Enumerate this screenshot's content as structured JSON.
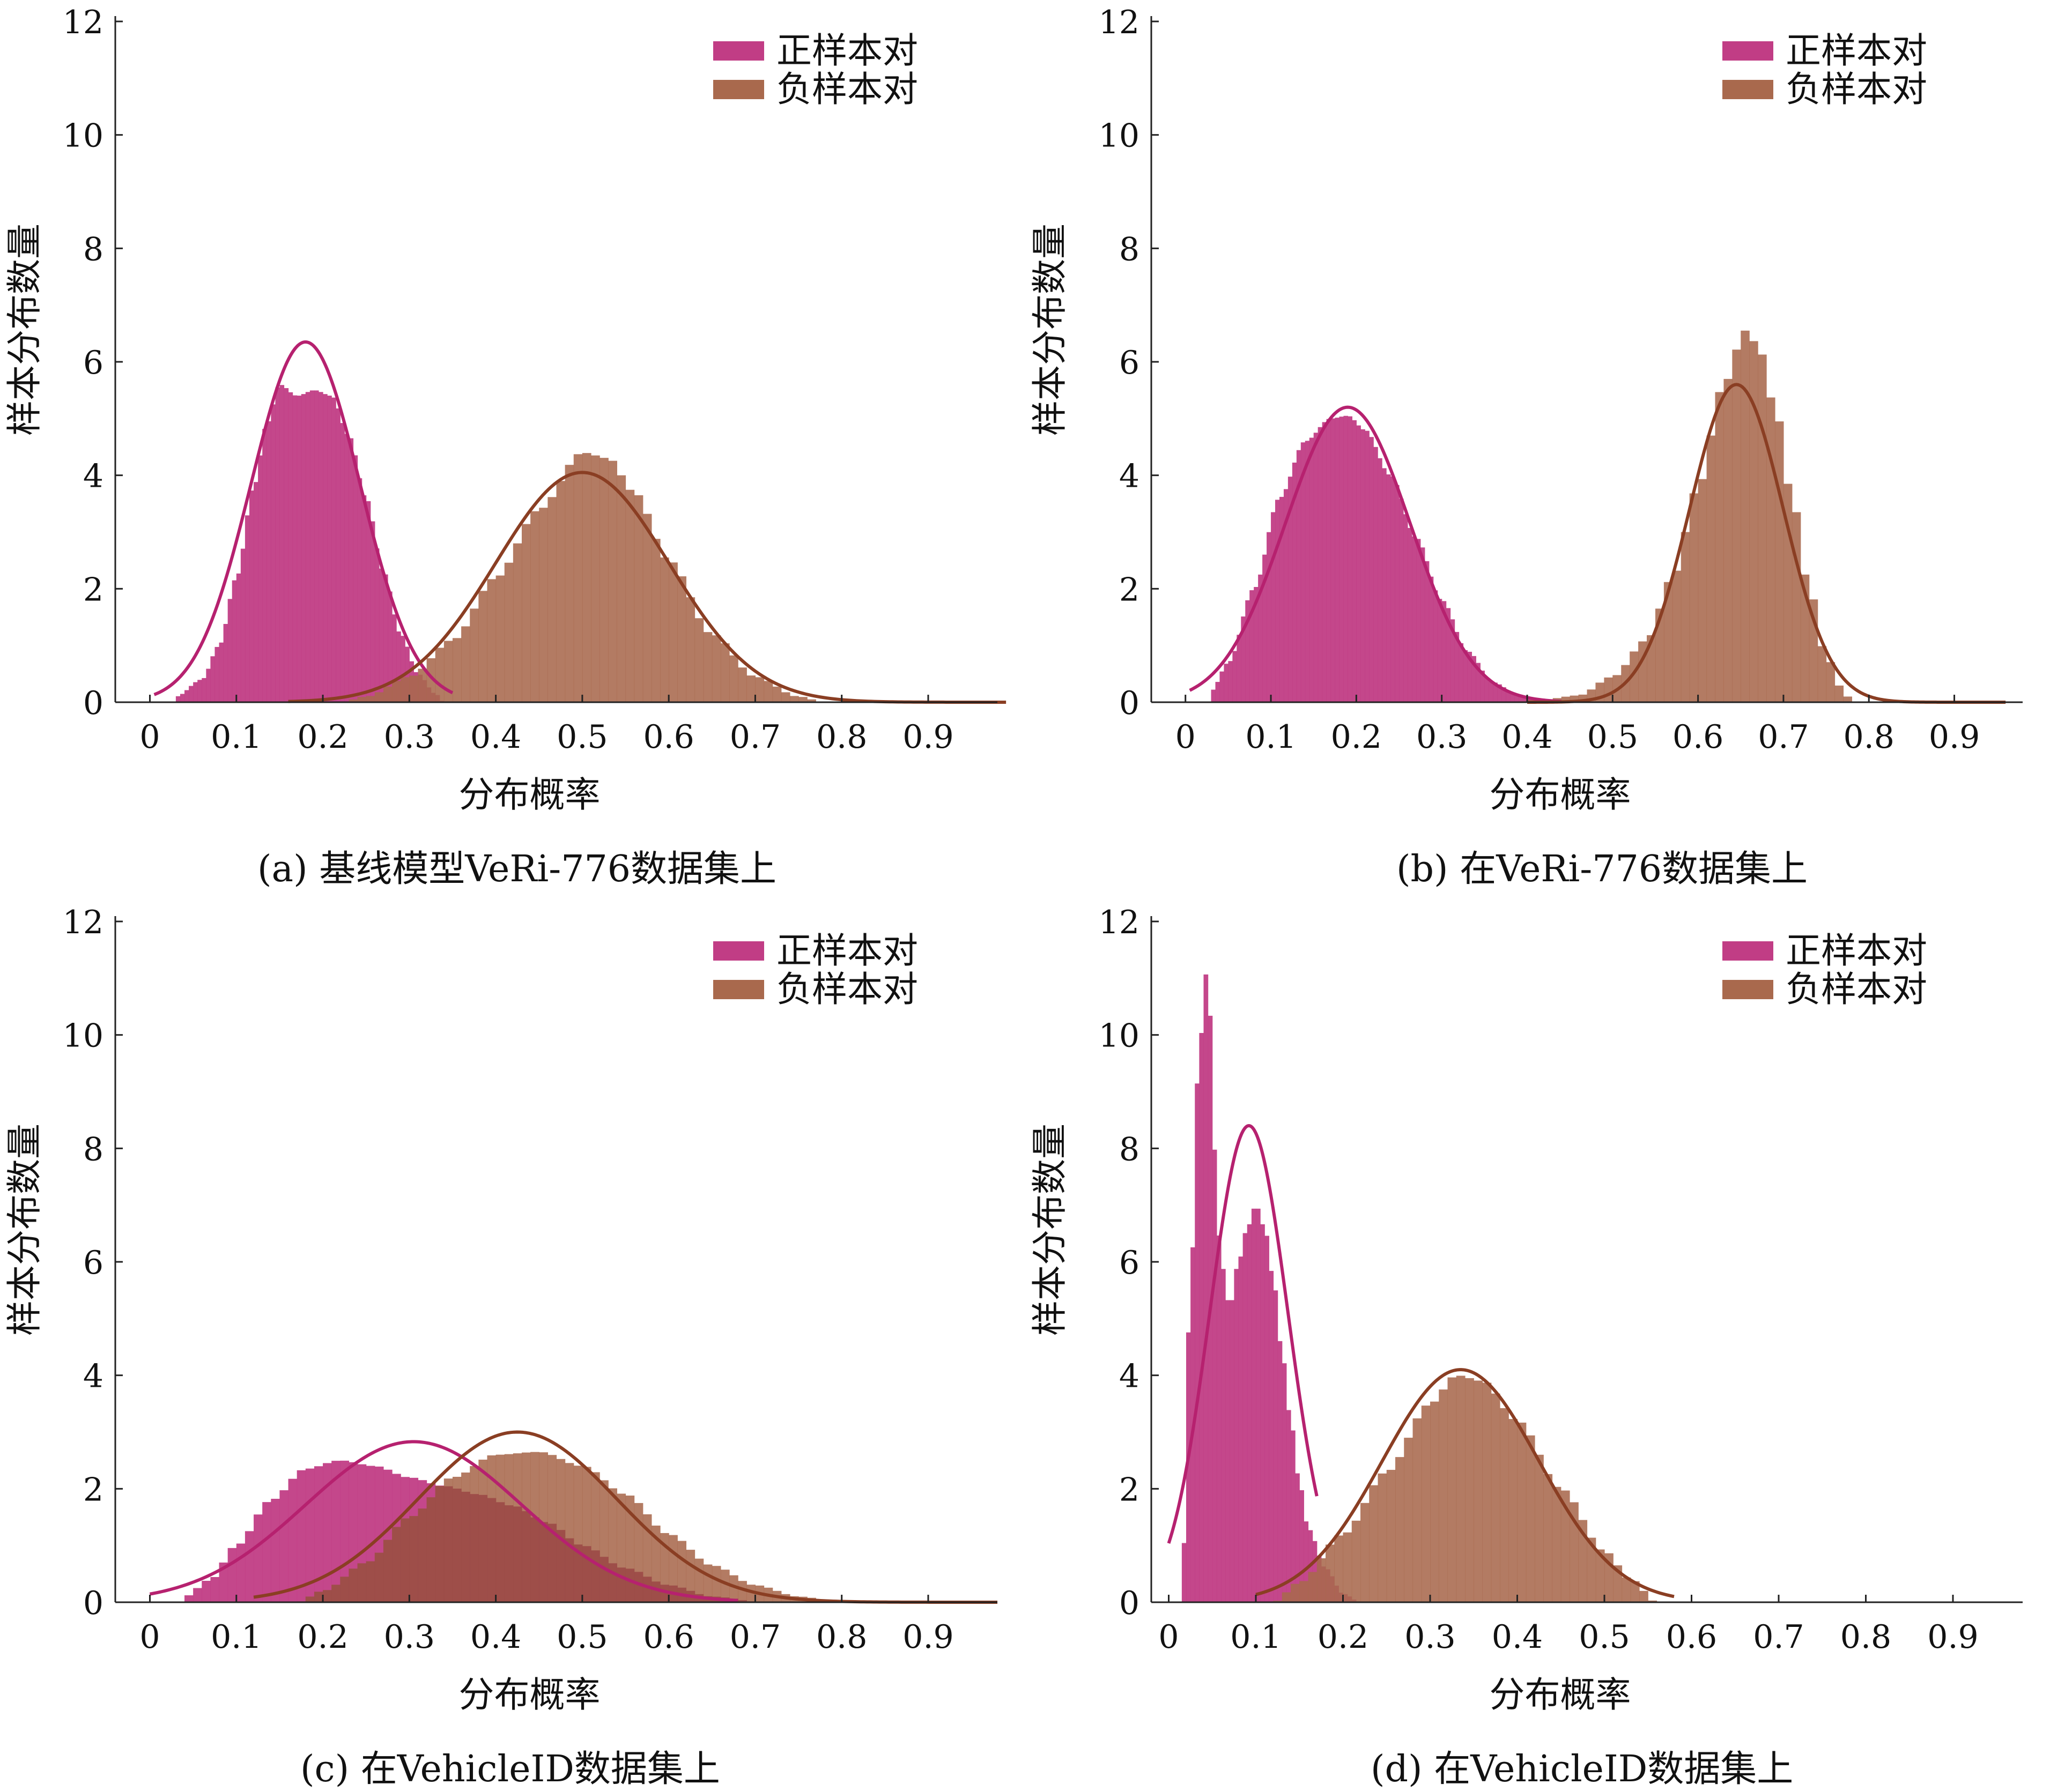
{
  "colors": {
    "positive": "#c13d85",
    "negative": "#a9694d",
    "positive_curve": "#b6216f",
    "negative_curve": "#8a3e23",
    "overlap": "#9b4a48"
  },
  "axis_text": {
    "ylabel": "样本分布数量",
    "xlabel": "分布概率"
  },
  "legend": {
    "positive": "正样本对",
    "negative": "负样本对"
  },
  "chart_data": [
    {
      "id": "a",
      "type": "histogram",
      "caption": "(a) 基线模型VeRi-776数据集上",
      "xlabel": "分布概率",
      "ylabel": "样本分布数量",
      "ylim": [
        0,
        12
      ],
      "yticks": [
        0,
        2,
        4,
        6,
        8,
        10,
        12
      ],
      "xticks": [
        "0",
        "0.1",
        "0.2",
        "0.3",
        "0.4",
        "0.5",
        "0.6",
        "0.7",
        "0.8",
        "0.9"
      ],
      "xlim": [
        -0.04,
        0.98
      ],
      "legend_position": "top-right",
      "series": [
        {
          "name": "正样本对",
          "role": "positive",
          "histogram": {
            "x_start": 0.03,
            "x_end": 0.34,
            "bin_width": 0.005,
            "anchors": [
              [
                0.03,
                0.1
              ],
              [
                0.06,
                0.4
              ],
              [
                0.08,
                1.0
              ],
              [
                0.1,
                2.2
              ],
              [
                0.12,
                3.8
              ],
              [
                0.135,
                4.9
              ],
              [
                0.15,
                5.6
              ],
              [
                0.17,
                5.4
              ],
              [
                0.19,
                5.5
              ],
              [
                0.21,
                5.4
              ],
              [
                0.23,
                4.7
              ],
              [
                0.25,
                3.6
              ],
              [
                0.27,
                2.3
              ],
              [
                0.29,
                1.2
              ],
              [
                0.31,
                0.5
              ],
              [
                0.33,
                0.15
              ],
              [
                0.34,
                0.0
              ]
            ]
          },
          "fit": {
            "mean": 0.18,
            "std": 0.063,
            "peak": 6.35,
            "x_range": [
              0.005,
              0.35
            ]
          }
        },
        {
          "name": "负样本对",
          "role": "negative",
          "histogram": {
            "x_start": 0.22,
            "x_end": 0.78,
            "bin_width": 0.01,
            "anchors": [
              [
                0.22,
                0.0
              ],
              [
                0.25,
                0.1
              ],
              [
                0.3,
                0.45
              ],
              [
                0.35,
                1.1
              ],
              [
                0.4,
                2.2
              ],
              [
                0.45,
                3.4
              ],
              [
                0.5,
                4.4
              ],
              [
                0.53,
                4.3
              ],
              [
                0.56,
                3.7
              ],
              [
                0.6,
                2.5
              ],
              [
                0.65,
                1.2
              ],
              [
                0.7,
                0.45
              ],
              [
                0.75,
                0.1
              ],
              [
                0.78,
                0.0
              ]
            ]
          },
          "fit": {
            "mean": 0.5,
            "std": 0.1,
            "peak": 4.05,
            "x_range": [
              0.16,
              0.99
            ]
          }
        }
      ]
    },
    {
      "id": "b",
      "type": "histogram",
      "caption": "(b) 在VeRi-776数据集上",
      "xlabel": "分布概率",
      "ylabel": "样本分布数量",
      "ylim": [
        0,
        12
      ],
      "yticks": [
        0,
        2,
        4,
        6,
        8,
        10,
        12
      ],
      "xticks": [
        "0",
        "0.1",
        "0.2",
        "0.3",
        "0.4",
        "0.5",
        "0.6",
        "0.7",
        "0.8",
        "0.9"
      ],
      "xlim": [
        -0.04,
        0.98
      ],
      "legend_position": "top-right",
      "series": [
        {
          "name": "正样本对",
          "role": "positive",
          "histogram": {
            "x_start": 0.03,
            "x_end": 0.43,
            "bin_width": 0.005,
            "anchors": [
              [
                0.03,
                0.2
              ],
              [
                0.05,
                0.7
              ],
              [
                0.08,
                2.0
              ],
              [
                0.11,
                3.6
              ],
              [
                0.14,
                4.6
              ],
              [
                0.17,
                5.0
              ],
              [
                0.19,
                5.05
              ],
              [
                0.21,
                4.8
              ],
              [
                0.24,
                4.0
              ],
              [
                0.27,
                2.9
              ],
              [
                0.3,
                1.8
              ],
              [
                0.33,
                0.9
              ],
              [
                0.36,
                0.35
              ],
              [
                0.39,
                0.12
              ],
              [
                0.42,
                0.05
              ],
              [
                0.43,
                0.0
              ]
            ]
          },
          "fit": {
            "mean": 0.19,
            "std": 0.073,
            "peak": 5.2,
            "x_range": [
              0.005,
              0.44
            ]
          }
        },
        {
          "name": "负样本对",
          "role": "negative",
          "histogram": {
            "x_start": 0.38,
            "x_end": 0.78,
            "bin_width": 0.01,
            "anchors": [
              [
                0.38,
                0.0
              ],
              [
                0.42,
                0.05
              ],
              [
                0.46,
                0.12
              ],
              [
                0.5,
                0.45
              ],
              [
                0.54,
                1.1
              ],
              [
                0.57,
                2.2
              ],
              [
                0.6,
                3.8
              ],
              [
                0.63,
                5.6
              ],
              [
                0.655,
                6.55
              ],
              [
                0.67,
                6.3
              ],
              [
                0.69,
                5.2
              ],
              [
                0.71,
                3.6
              ],
              [
                0.73,
                2.0
              ],
              [
                0.75,
                0.8
              ],
              [
                0.77,
                0.2
              ],
              [
                0.78,
                0.0
              ]
            ]
          },
          "fit": {
            "mean": 0.645,
            "std": 0.055,
            "peak": 5.6,
            "x_range": [
              0.4,
              0.96
            ]
          }
        }
      ]
    },
    {
      "id": "c",
      "type": "histogram",
      "caption": "(c) 在VehicleID数据集上",
      "xlabel": "分布概率",
      "ylabel": "样本分布数量",
      "ylim": [
        0,
        12
      ],
      "yticks": [
        0,
        2,
        4,
        6,
        8,
        10,
        12
      ],
      "xticks": [
        "0",
        "0.1",
        "0.2",
        "0.3",
        "0.4",
        "0.5",
        "0.6",
        "0.7",
        "0.8",
        "0.9"
      ],
      "xlim": [
        -0.04,
        0.98
      ],
      "legend_position": "top-right",
      "series": [
        {
          "name": "正样本对",
          "role": "positive",
          "histogram": {
            "x_start": 0.04,
            "x_end": 0.71,
            "bin_width": 0.01,
            "anchors": [
              [
                0.04,
                0.1
              ],
              [
                0.07,
                0.4
              ],
              [
                0.1,
                1.0
              ],
              [
                0.14,
                1.8
              ],
              [
                0.18,
                2.35
              ],
              [
                0.22,
                2.5
              ],
              [
                0.26,
                2.4
              ],
              [
                0.3,
                2.2
              ],
              [
                0.34,
                2.05
              ],
              [
                0.38,
                1.9
              ],
              [
                0.42,
                1.7
              ],
              [
                0.46,
                1.4
              ],
              [
                0.5,
                1.0
              ],
              [
                0.55,
                0.6
              ],
              [
                0.6,
                0.3
              ],
              [
                0.65,
                0.1
              ],
              [
                0.71,
                0.0
              ]
            ]
          },
          "fit": {
            "mean": 0.305,
            "std": 0.125,
            "peak": 2.83,
            "x_range": [
              0.0,
              0.68
            ]
          }
        },
        {
          "name": "负样本对",
          "role": "negative",
          "histogram": {
            "x_start": 0.17,
            "x_end": 0.8,
            "bin_width": 0.01,
            "anchors": [
              [
                0.17,
                0.0
              ],
              [
                0.2,
                0.2
              ],
              [
                0.25,
                0.7
              ],
              [
                0.3,
                1.5
              ],
              [
                0.35,
                2.2
              ],
              [
                0.4,
                2.6
              ],
              [
                0.45,
                2.65
              ],
              [
                0.5,
                2.4
              ],
              [
                0.55,
                1.9
              ],
              [
                0.6,
                1.2
              ],
              [
                0.65,
                0.65
              ],
              [
                0.7,
                0.3
              ],
              [
                0.75,
                0.1
              ],
              [
                0.8,
                0.0
              ]
            ]
          },
          "fit": {
            "mean": 0.425,
            "std": 0.115,
            "peak": 3.0,
            "x_range": [
              0.12,
              0.98
            ]
          }
        }
      ]
    },
    {
      "id": "d",
      "type": "histogram",
      "caption": "(d) 在VehicleID数据集上",
      "xlabel": "分布概率",
      "ylabel": "样本分布数量",
      "ylim": [
        0,
        12
      ],
      "yticks": [
        0,
        2,
        4,
        6,
        8,
        10,
        12
      ],
      "xticks": [
        "0",
        "0.1",
        "0.2",
        "0.3",
        "0.4",
        "0.5",
        "0.6",
        "0.7",
        "0.8",
        "0.9"
      ],
      "xlim": [
        -0.02,
        0.98
      ],
      "legend_position": "top-right",
      "series": [
        {
          "name": "正样本对",
          "role": "positive",
          "histogram": {
            "x_start": 0.015,
            "x_end": 0.22,
            "bin_width": 0.005,
            "anchors": [
              [
                0.015,
                0.2
              ],
              [
                0.025,
                5.6
              ],
              [
                0.035,
                9.8
              ],
              [
                0.045,
                11.3
              ],
              [
                0.052,
                8.0
              ],
              [
                0.06,
                6.0
              ],
              [
                0.07,
                5.2
              ],
              [
                0.08,
                6.0
              ],
              [
                0.09,
                6.6
              ],
              [
                0.1,
                7.0
              ],
              [
                0.11,
                6.6
              ],
              [
                0.12,
                5.7
              ],
              [
                0.13,
                4.4
              ],
              [
                0.14,
                3.2
              ],
              [
                0.15,
                2.1
              ],
              [
                0.16,
                1.3
              ],
              [
                0.18,
                0.6
              ],
              [
                0.2,
                0.15
              ],
              [
                0.22,
                0.0
              ]
            ]
          },
          "fit": {
            "mean": 0.092,
            "std": 0.045,
            "peak": 8.4,
            "x_range": [
              0.0,
              0.17
            ]
          }
        },
        {
          "name": "负样本对",
          "role": "negative",
          "histogram": {
            "x_start": 0.12,
            "x_end": 0.56,
            "bin_width": 0.01,
            "anchors": [
              [
                0.12,
                0.0
              ],
              [
                0.15,
                0.35
              ],
              [
                0.2,
                1.2
              ],
              [
                0.25,
                2.3
              ],
              [
                0.3,
                3.5
              ],
              [
                0.33,
                4.0
              ],
              [
                0.36,
                3.9
              ],
              [
                0.4,
                3.2
              ],
              [
                0.45,
                2.0
              ],
              [
                0.5,
                0.9
              ],
              [
                0.53,
                0.4
              ],
              [
                0.56,
                0.0
              ]
            ]
          },
          "fit": {
            "mean": 0.335,
            "std": 0.09,
            "peak": 4.1,
            "x_range": [
              0.1,
              0.58
            ]
          }
        }
      ]
    }
  ]
}
